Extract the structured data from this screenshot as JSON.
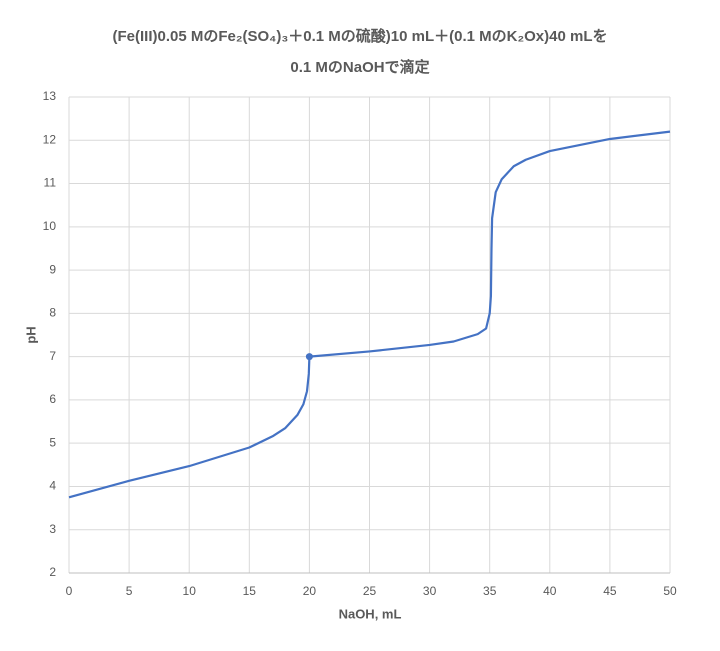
{
  "chart_data": {
    "type": "line",
    "title": [
      "(Fe(III)0.05 MのFe₂(SO₄)₃＋0.1 Mの硫酸)10 mL＋(0.1 MのK₂Ox)40 mLを",
      "0.1 MのNaOHで滴定"
    ],
    "x_label": "NaOH, mL",
    "y_label": "pH",
    "xlim": [
      0,
      50
    ],
    "xticks": [
      0,
      5,
      10,
      15,
      20,
      25,
      30,
      35,
      40,
      45,
      50
    ],
    "ylim": [
      2,
      13
    ],
    "yticks": [
      2,
      3,
      4,
      5,
      6,
      7,
      8,
      9,
      10,
      11,
      12,
      13
    ],
    "grid": true,
    "series": [
      {
        "color": "#4472c4",
        "marker": false,
        "x": [
          0,
          5,
          10,
          15,
          17,
          18,
          19,
          19.5,
          19.8,
          19.95,
          20,
          25,
          30,
          32,
          34,
          34.7,
          35.0,
          35.1,
          35.15,
          35.2,
          35.5,
          36,
          37,
          38,
          40,
          45,
          50
        ],
        "values": [
          3.75,
          4.13,
          4.47,
          4.9,
          5.17,
          5.35,
          5.65,
          5.9,
          6.2,
          6.6,
          7.0,
          7.12,
          7.27,
          7.35,
          7.52,
          7.65,
          8.0,
          8.4,
          9.5,
          10.2,
          10.8,
          11.1,
          11.4,
          11.55,
          11.75,
          12.03,
          12.2
        ]
      },
      {
        "color": "#4472c4",
        "marker": true,
        "x": [
          20
        ],
        "values": [
          7
        ]
      }
    ]
  }
}
